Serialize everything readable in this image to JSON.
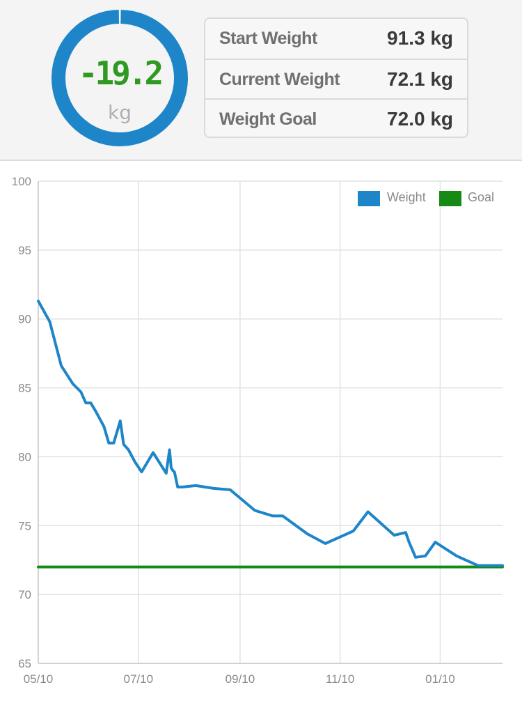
{
  "summary": {
    "change_value": "-19.2",
    "change_unit": "kg",
    "progress": 0.995,
    "ring_color": "#1e85c8",
    "change_color": "#2e9a22",
    "rows": [
      {
        "label": "Start Weight",
        "value": "91.3 kg"
      },
      {
        "label": "Current Weight",
        "value": "72.1 kg"
      },
      {
        "label": "Weight Goal",
        "value": "72.0 kg"
      }
    ]
  },
  "chart_data": {
    "type": "line",
    "ylim": [
      65,
      100
    ],
    "y_ticks": [
      100,
      95,
      90,
      85,
      80,
      75,
      70,
      65
    ],
    "x_ticks": [
      "05/10",
      "07/10",
      "09/10",
      "11/10",
      "01/10"
    ],
    "legend": "top-right",
    "grid": true,
    "series": [
      {
        "name": "Weight",
        "color": "#1e85c8",
        "x": [
          "05/10",
          "05/17",
          "05/24",
          "05/31",
          "06/05",
          "06/08",
          "06/11",
          "06/14",
          "06/19",
          "06/22",
          "06/25",
          "06/29",
          "07/01",
          "07/04",
          "07/08",
          "07/12",
          "07/19",
          "07/27",
          "07/29",
          "07/30",
          "07/31",
          "08/01",
          "08/03",
          "08/06",
          "08/14",
          "08/25",
          "09/04",
          "09/19",
          "09/30",
          "10/06",
          "10/21",
          "11/01",
          "11/18",
          "11/27",
          "12/13",
          "12/20",
          "12/22",
          "12/26",
          "01/01",
          "01/07",
          "01/20",
          "02/02",
          "02/10",
          "02/16",
          "02/17"
        ],
        "values": [
          91.3,
          89.8,
          86.6,
          85.3,
          84.7,
          83.9,
          83.9,
          83.3,
          82.2,
          81.0,
          81.0,
          82.6,
          80.9,
          80.5,
          79.6,
          78.9,
          80.3,
          78.8,
          80.5,
          79.2,
          79.0,
          78.9,
          77.8,
          77.8,
          77.9,
          77.7,
          77.6,
          76.1,
          75.7,
          75.7,
          74.4,
          73.7,
          74.6,
          76.0,
          74.3,
          74.5,
          73.8,
          72.7,
          72.8,
          73.8,
          72.8,
          72.1,
          72.1,
          72.1,
          72.1
        ]
      },
      {
        "name": "Goal",
        "color": "#168a14",
        "x": [
          "05/10",
          "02/17"
        ],
        "values": [
          72.0,
          72.0
        ]
      }
    ]
  }
}
